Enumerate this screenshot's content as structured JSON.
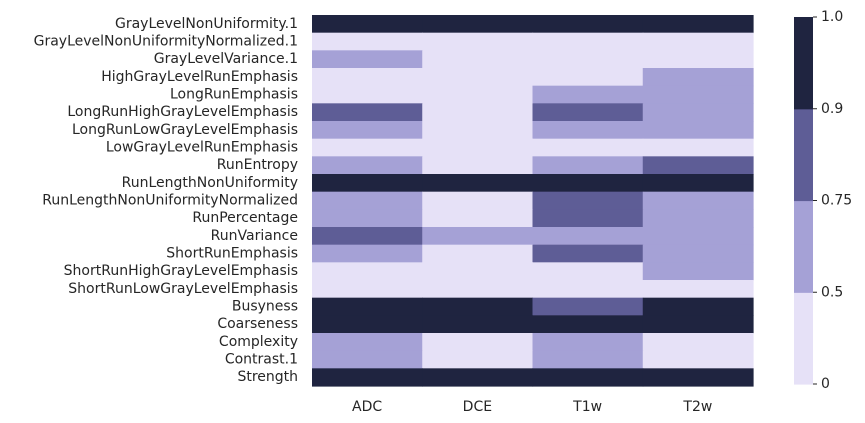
{
  "chart_data": {
    "type": "heatmap",
    "title": "",
    "xlabel": "",
    "ylabel": "",
    "columns": [
      "ADC",
      "DCE",
      "T1w",
      "T2w"
    ],
    "rows": [
      "GrayLevelNonUniformity.1",
      "GrayLevelNonUniformityNormalized.1",
      "GrayLevelVariance.1",
      "HighGrayLevelRunEmphasis",
      "LongRunEmphasis",
      "LongRunHighGrayLevelEmphasis",
      "LongRunLowGrayLevelEmphasis",
      "LowGrayLevelRunEmphasis",
      "RunEntropy",
      "RunLengthNonUniformity",
      "RunLengthNonUniformityNormalized",
      "RunPercentage",
      "RunVariance",
      "ShortRunEmphasis",
      "ShortRunHighGrayLevelEmphasis",
      "ShortRunLowGrayLevelEmphasis",
      "Busyness",
      "Coarseness",
      "Complexity",
      "Contrast.1",
      "Strength"
    ],
    "values": [
      [
        1.0,
        1.0,
        1.0,
        1.0
      ],
      [
        0.25,
        0.25,
        0.25,
        0.25
      ],
      [
        0.6,
        0.25,
        0.25,
        0.25
      ],
      [
        0.25,
        0.25,
        0.25,
        0.6
      ],
      [
        0.25,
        0.25,
        0.6,
        0.6
      ],
      [
        0.8,
        0.25,
        0.8,
        0.6
      ],
      [
        0.6,
        0.25,
        0.6,
        0.6
      ],
      [
        0.25,
        0.25,
        0.25,
        0.25
      ],
      [
        0.6,
        0.25,
        0.6,
        0.8
      ],
      [
        1.0,
        1.0,
        1.0,
        1.0
      ],
      [
        0.6,
        0.25,
        0.8,
        0.6
      ],
      [
        0.6,
        0.25,
        0.8,
        0.6
      ],
      [
        0.8,
        0.6,
        0.6,
        0.6
      ],
      [
        0.6,
        0.25,
        0.8,
        0.6
      ],
      [
        0.25,
        0.25,
        0.25,
        0.6
      ],
      [
        0.25,
        0.25,
        0.25,
        0.25
      ],
      [
        1.0,
        1.0,
        0.8,
        1.0
      ],
      [
        1.0,
        1.0,
        1.0,
        1.0
      ],
      [
        0.6,
        0.25,
        0.6,
        0.25
      ],
      [
        0.6,
        0.25,
        0.6,
        0.25
      ],
      [
        1.0,
        1.0,
        1.0,
        1.0
      ]
    ],
    "colorbar": {
      "bounds": [
        0,
        0.5,
        0.75,
        0.9,
        1.0
      ],
      "tick_labels": [
        "0",
        "0.5",
        "0.75",
        "0.9",
        "1.0"
      ],
      "colors": [
        "#e6e1f7",
        "#a5a1d6",
        "#5e5d96",
        "#1f2440"
      ]
    },
    "grid": false,
    "legend": "colorbar-right"
  }
}
